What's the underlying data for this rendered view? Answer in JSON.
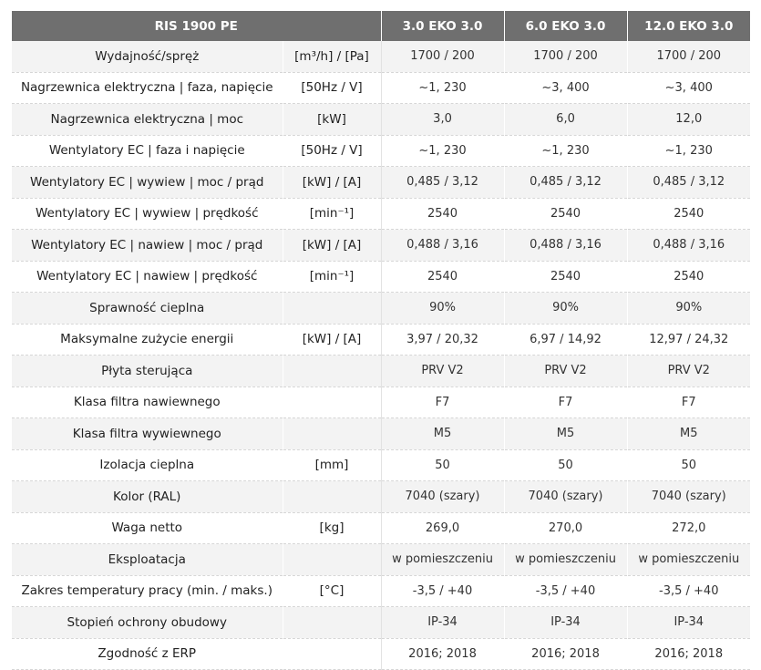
{
  "table": {
    "header": [
      "RIS 1900 PE",
      "3.0 EKO 3.0",
      "6.0 EKO 3.0",
      "12.0 EKO 3.0"
    ],
    "rows": [
      {
        "label": "Wydajność/spręż",
        "unit": "[m³/h] / [Pa]",
        "values": [
          "1700 / 200",
          "1700 / 200",
          "1700 / 200"
        ]
      },
      {
        "label": "Nagrzewnica elektryczna | faza, napięcie",
        "unit": "[50Hz / V]",
        "values": [
          "~1, 230",
          "~3, 400",
          "~3, 400"
        ]
      },
      {
        "label": "Nagrzewnica elektryczna | moc",
        "unit": "[kW]",
        "values": [
          "3,0",
          "6,0",
          "12,0"
        ]
      },
      {
        "label": "Wentylatory EC | faza i napięcie",
        "unit": "[50Hz / V]",
        "values": [
          "~1, 230",
          "~1, 230",
          "~1, 230"
        ]
      },
      {
        "label": "Wentylatory EC | wywiew | moc / prąd",
        "unit": "[kW] / [A]",
        "values": [
          "0,485 / 3,12",
          "0,485 / 3,12",
          "0,485 / 3,12"
        ]
      },
      {
        "label": "Wentylatory EC | wywiew | prędkość",
        "unit": "[min⁻¹]",
        "values": [
          "2540",
          "2540",
          "2540"
        ]
      },
      {
        "label": "Wentylatory EC | nawiew | moc / prąd",
        "unit": "[kW] / [A]",
        "values": [
          "0,488 / 3,16",
          "0,488 / 3,16",
          "0,488 / 3,16"
        ]
      },
      {
        "label": "Wentylatory EC | nawiew | prędkość",
        "unit": "[min⁻¹]",
        "values": [
          "2540",
          "2540",
          "2540"
        ]
      },
      {
        "label": "Sprawność cieplna",
        "unit": "",
        "values": [
          "90%",
          "90%",
          "90%"
        ]
      },
      {
        "label": "Maksymalne zużycie energii",
        "unit": "[kW] / [A]",
        "values": [
          "3,97 / 20,32",
          "6,97 / 14,92",
          "12,97 / 24,32"
        ]
      },
      {
        "label": "Płyta sterująca",
        "unit": "",
        "values": [
          "PRV V2",
          "PRV V2",
          "PRV V2"
        ]
      },
      {
        "label": "Klasa filtra nawiewnego",
        "unit": "",
        "values": [
          "F7",
          "F7",
          "F7"
        ]
      },
      {
        "label": "Klasa filtra wywiewnego",
        "unit": "",
        "values": [
          "M5",
          "M5",
          "M5"
        ]
      },
      {
        "label": "Izolacja cieplna",
        "unit": "[mm]",
        "values": [
          "50",
          "50",
          "50"
        ]
      },
      {
        "label": "Kolor (RAL)",
        "unit": "",
        "values": [
          "7040 (szary)",
          "7040 (szary)",
          "7040 (szary)"
        ]
      },
      {
        "label": "Waga netto",
        "unit": "[kg]",
        "values": [
          "269,0",
          "270,0",
          "272,0"
        ]
      },
      {
        "label": "Eksploatacja",
        "unit": "",
        "values": [
          "w pomieszczeniu",
          "w pomieszczeniu",
          "w pomieszczeniu"
        ]
      },
      {
        "label": "Zakres temperatury pracy (min. / maks.)",
        "unit": "[°C]",
        "values": [
          "-3,5 / +40",
          "-3,5 / +40",
          "-3,5 / +40"
        ]
      },
      {
        "label": "Stopień ochrony obudowy",
        "unit": "",
        "values": [
          "IP-34",
          "IP-34",
          "IP-34"
        ]
      },
      {
        "label": "Zgodność z ERP",
        "unit": "",
        "values": [
          "2016; 2018",
          "2016; 2018",
          "2016; 2018"
        ]
      }
    ]
  },
  "colors": {
    "header_bg": "#6f6f6f",
    "row_odd_bg": "#f3f3f3",
    "row_even_bg": "#ffffff"
  }
}
